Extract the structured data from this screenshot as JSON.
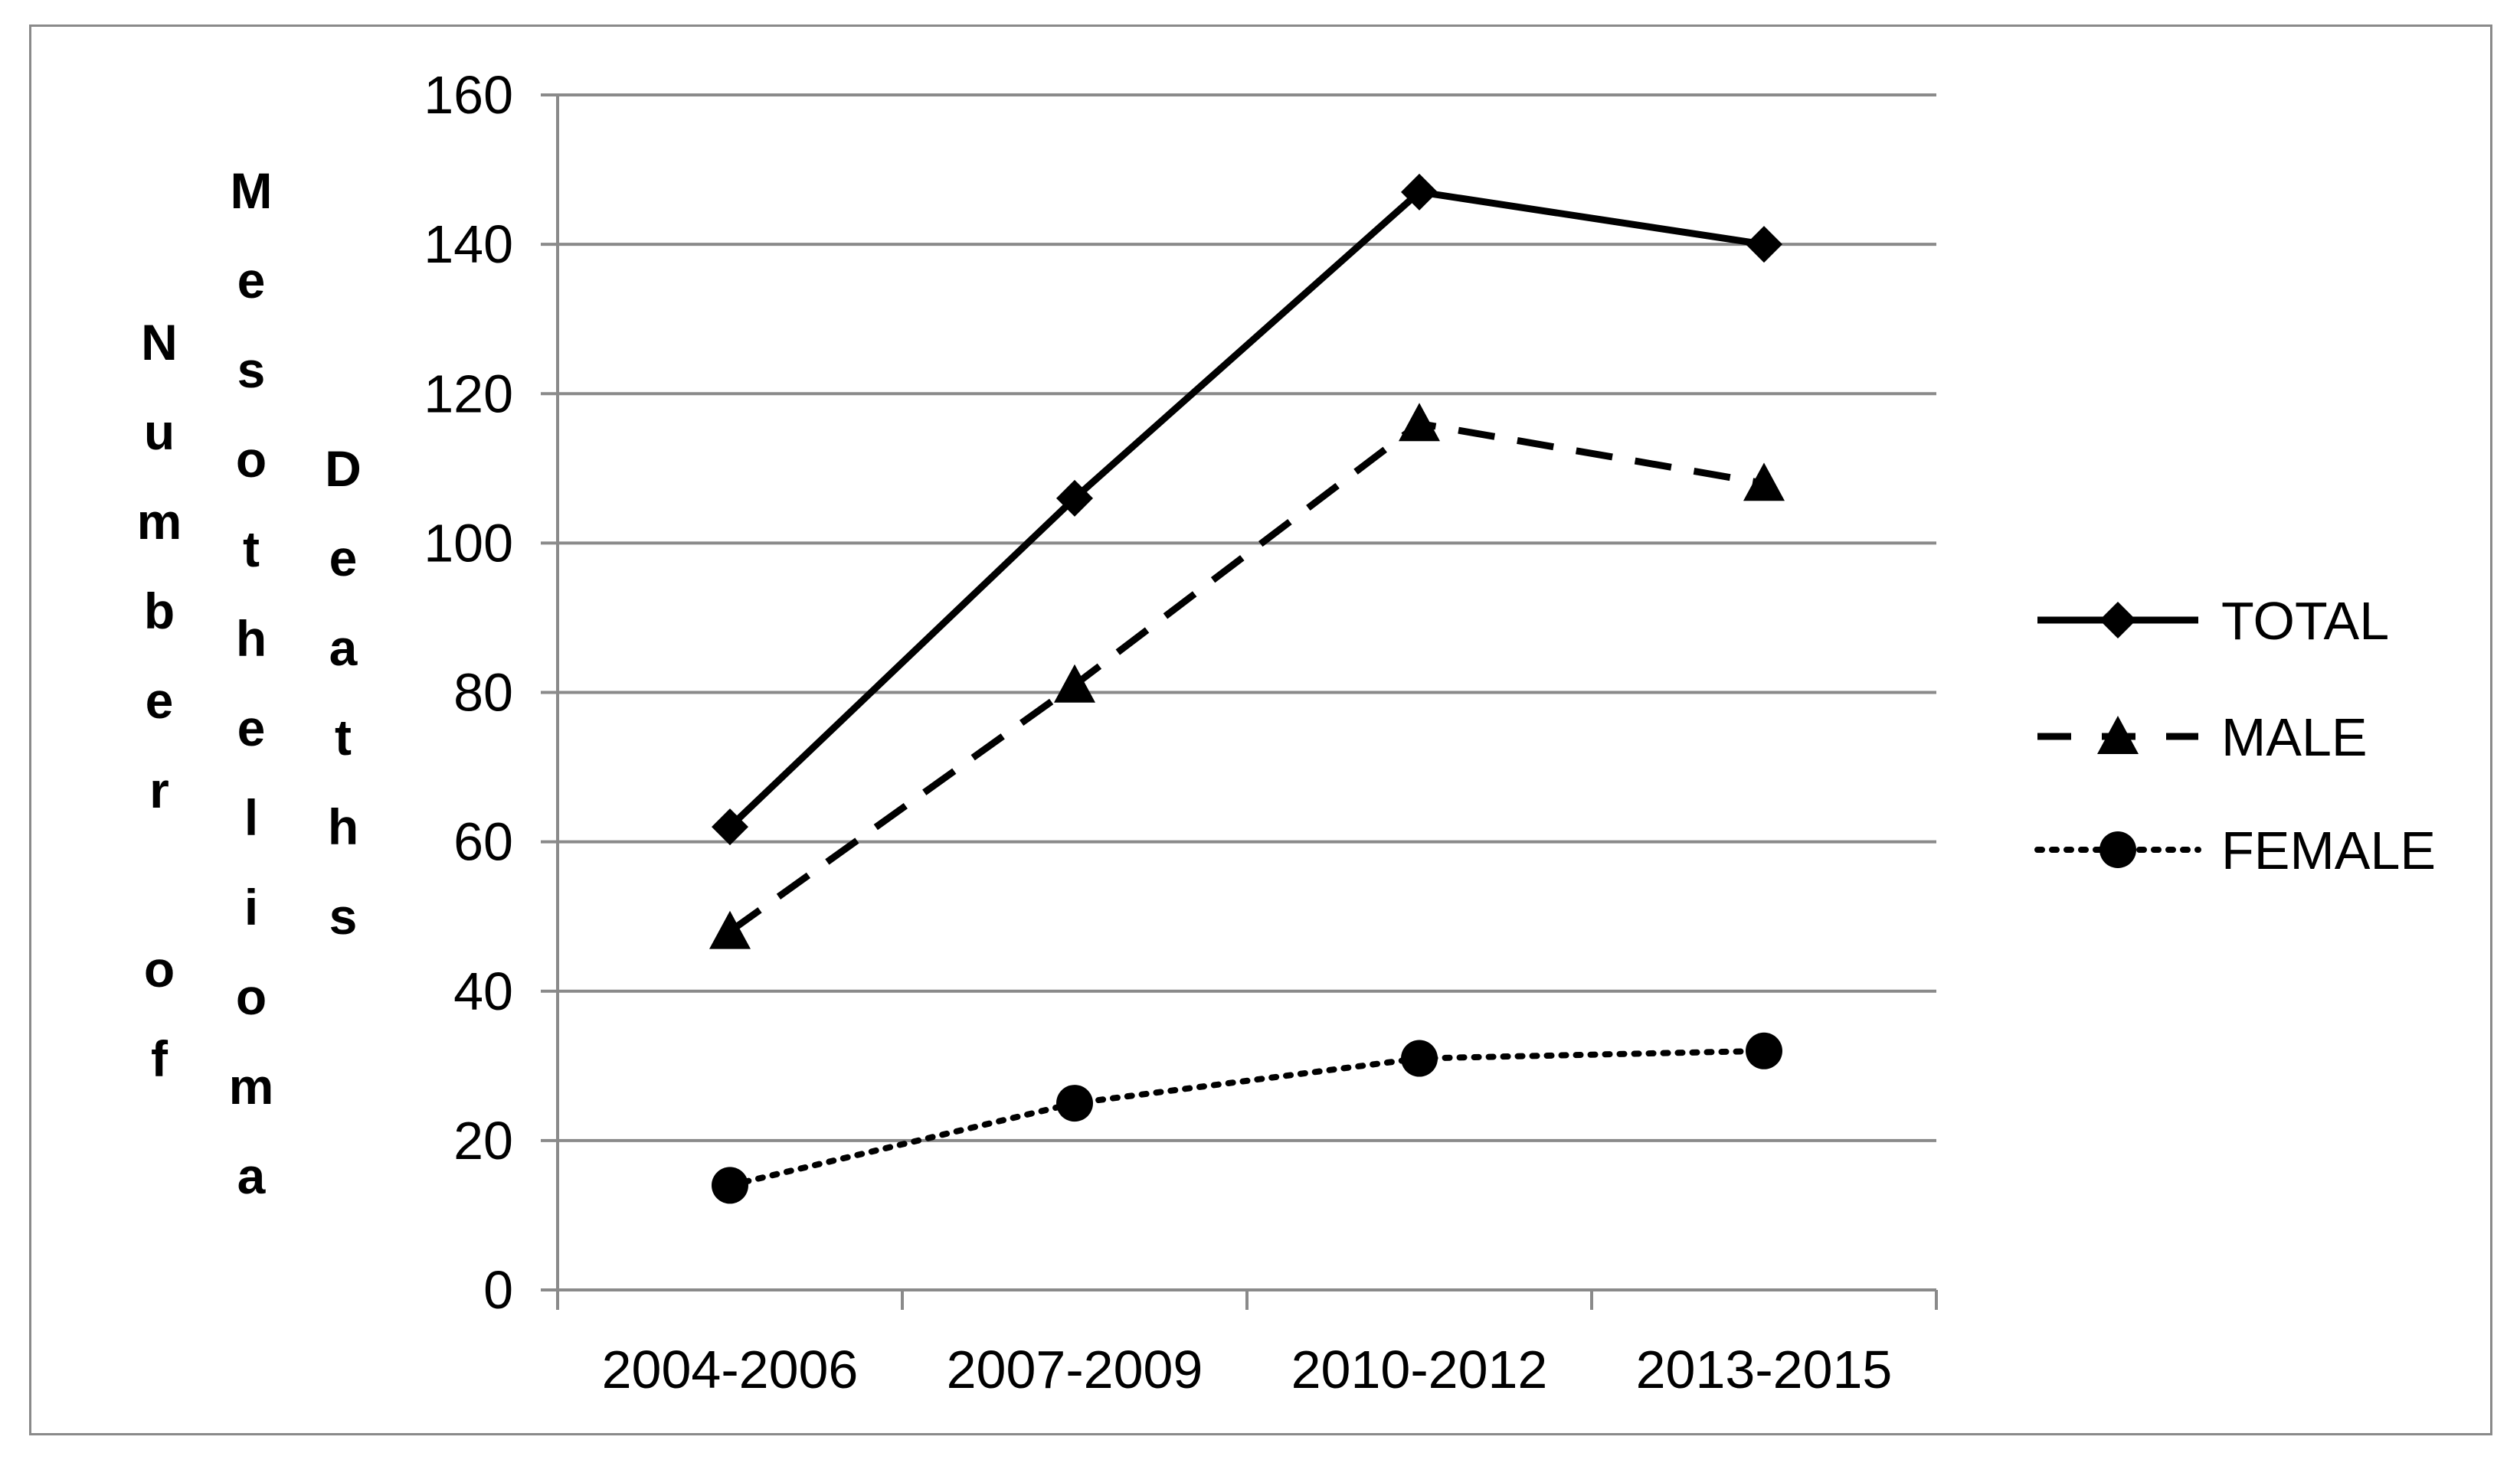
{
  "chart_data": {
    "type": "line",
    "categories": [
      "2004-2006",
      "2007-2009",
      "2010-2012",
      "2013-2015"
    ],
    "ylabel_columns": [
      "Number of",
      "Mesothelioma",
      "Deaths"
    ],
    "ylim": [
      0,
      160
    ],
    "yticks": [
      0,
      20,
      40,
      60,
      80,
      100,
      120,
      140,
      160
    ],
    "grid": true,
    "legend_position": "right",
    "series": [
      {
        "name": "TOTAL",
        "values": [
          62,
          106,
          147,
          140
        ],
        "line_style": "solid",
        "marker": "diamond",
        "color": "#000000"
      },
      {
        "name": "MALE",
        "values": [
          48,
          81,
          116,
          108
        ],
        "line_style": "dashed",
        "marker": "triangle",
        "color": "#000000"
      },
      {
        "name": "FEMALE",
        "values": [
          14,
          25,
          31,
          32
        ],
        "line_style": "dotted",
        "marker": "circle",
        "color": "#000000"
      }
    ],
    "gridline_color": "#8a8a8a",
    "axis_color": "#8a8a8a"
  }
}
